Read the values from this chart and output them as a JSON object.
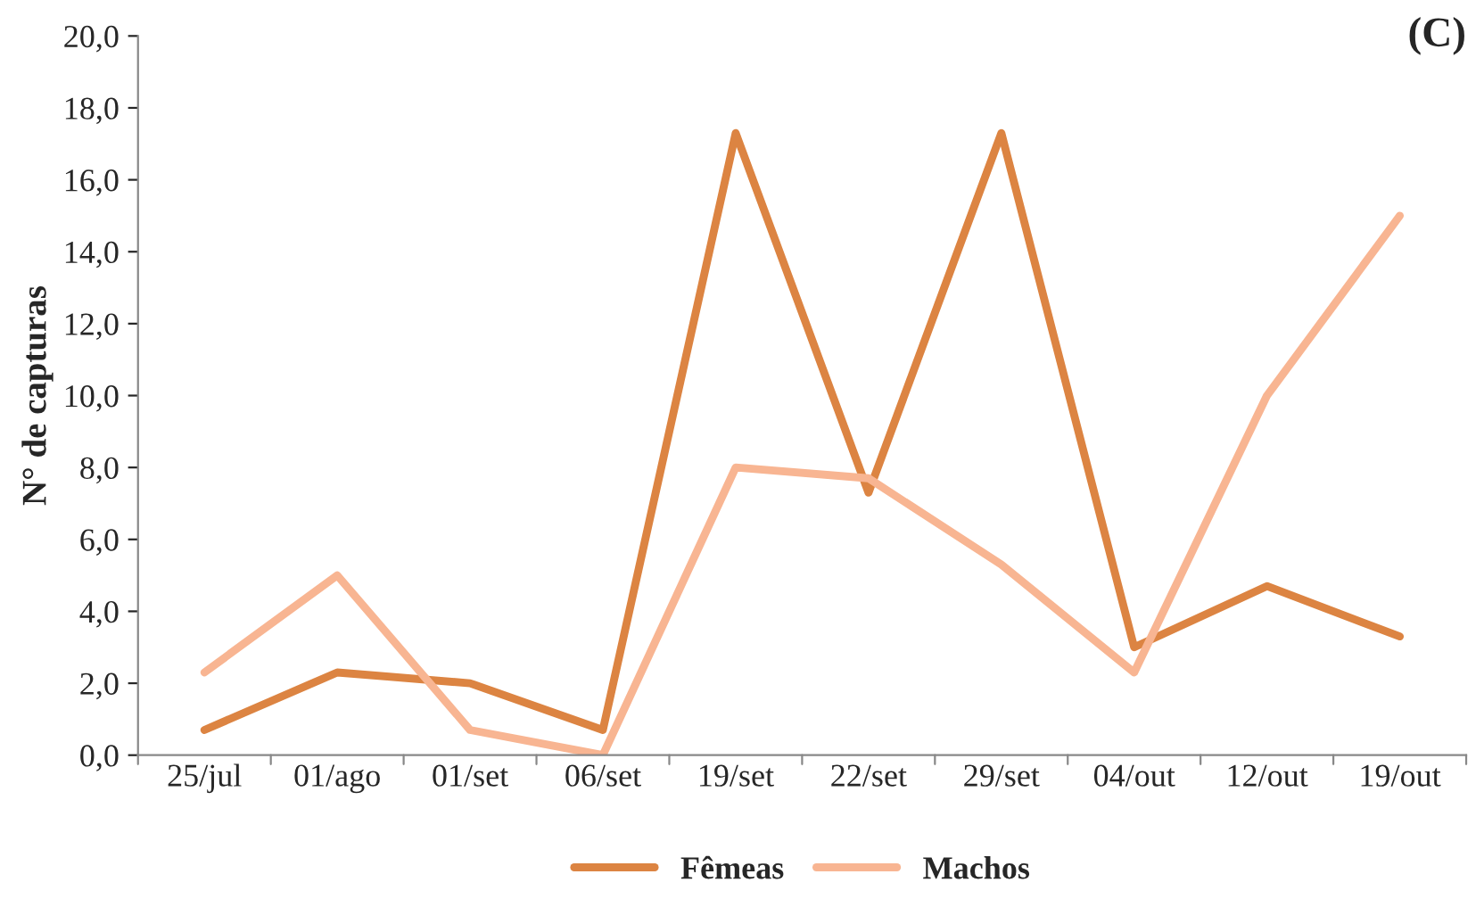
{
  "chart_data": {
    "type": "line",
    "ylabel": "N° de capturas",
    "annotations": [
      "(C)"
    ],
    "categories": [
      "25/jul",
      "01/ago",
      "01/set",
      "06/set",
      "19/set",
      "22/set",
      "29/set",
      "04/out",
      "12/out",
      "19/out"
    ],
    "series": [
      {
        "name": "Fêmeas",
        "color": "#dc8442",
        "values": [
          0.7,
          2.3,
          2.0,
          0.7,
          17.3,
          7.3,
          17.3,
          3.0,
          4.7,
          3.3
        ]
      },
      {
        "name": "Machos",
        "color": "#f8b592",
        "values": [
          2.3,
          5.0,
          0.7,
          0.0,
          8.0,
          7.7,
          5.3,
          2.3,
          10.0,
          15.0
        ]
      }
    ],
    "ylim": [
      0,
      20
    ],
    "yticks": [
      {
        "value": 0,
        "label": "0,0"
      },
      {
        "value": 2,
        "label": "2,0"
      },
      {
        "value": 4,
        "label": "4,0"
      },
      {
        "value": 6,
        "label": "6,0"
      },
      {
        "value": 8,
        "label": "8,0"
      },
      {
        "value": 10,
        "label": "10,0"
      },
      {
        "value": 12,
        "label": "12,0"
      },
      {
        "value": 14,
        "label": "14,0"
      },
      {
        "value": 16,
        "label": "16,0"
      },
      {
        "value": 18,
        "label": "18,0"
      },
      {
        "value": 20,
        "label": "20,0"
      }
    ],
    "legend": "bottom",
    "marker": "none",
    "line_style": "solid"
  }
}
